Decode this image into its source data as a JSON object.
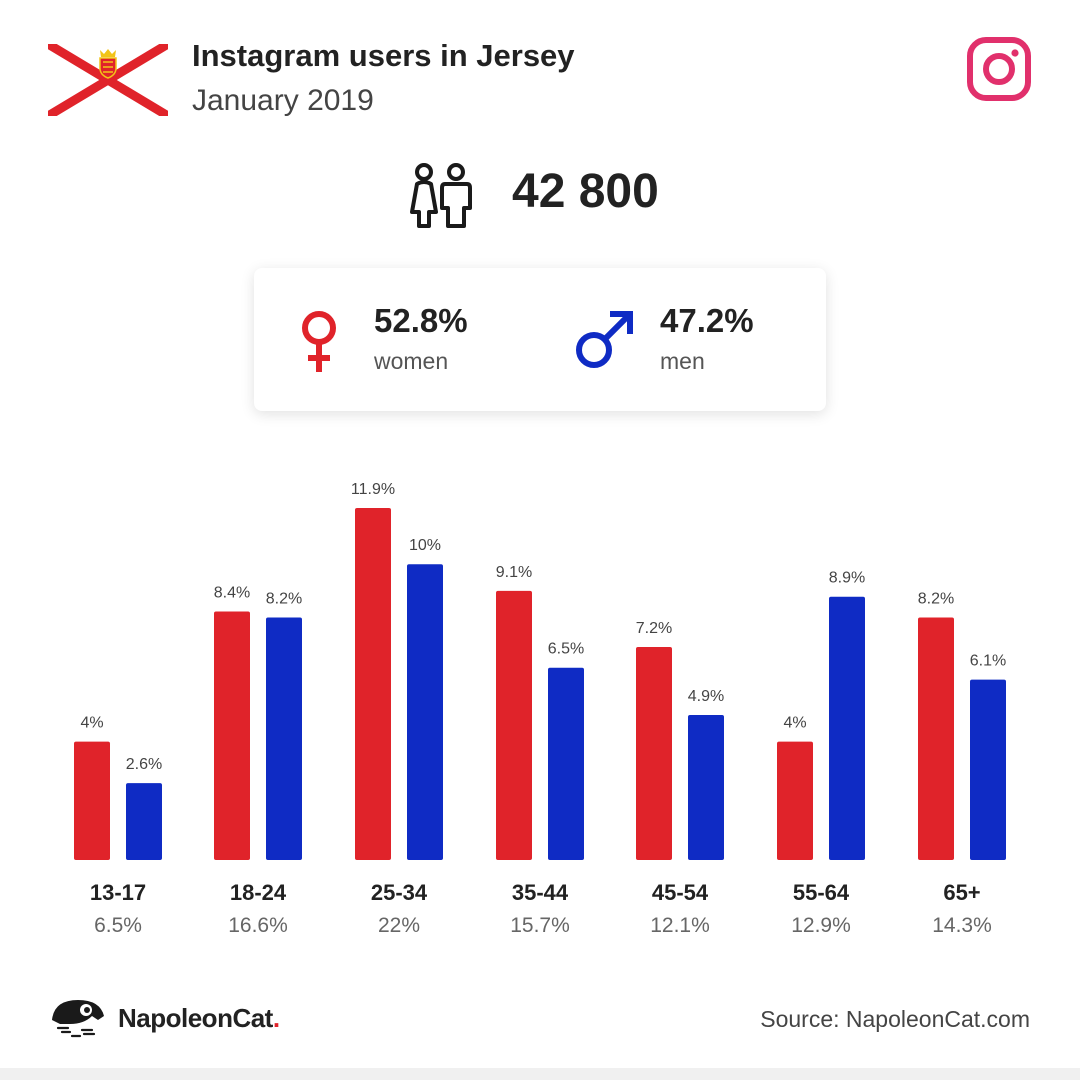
{
  "header": {
    "title": "Instagram users in Jersey",
    "subtitle": "January 2019"
  },
  "icons": {
    "flag": "jersey-flag-icon",
    "platform": "instagram-icon",
    "users": "users-icon",
    "female": "female-symbol-icon",
    "male": "male-symbol-icon",
    "brand": "napoleoncat-logo-icon"
  },
  "total_users": "42 800",
  "gender": {
    "women_pct": "52.8%",
    "women_label": "women",
    "men_pct": "47.2%",
    "men_label": "men"
  },
  "colors": {
    "women": "#e0232a",
    "men": "#0f2bc4",
    "instagram": "#e1306c",
    "flag_red": "#e0232a"
  },
  "chart_data": {
    "type": "bar",
    "categories": [
      "13-17",
      "18-24",
      "25-34",
      "35-44",
      "45-54",
      "55-64",
      "65+"
    ],
    "category_totals": [
      "6.5%",
      "16.6%",
      "22%",
      "15.7%",
      "12.1%",
      "12.9%",
      "14.3%"
    ],
    "series": [
      {
        "name": "women",
        "values": [
          4,
          8.4,
          11.9,
          9.1,
          7.2,
          4,
          8.2
        ],
        "labels": [
          "4%",
          "8.4%",
          "11.9%",
          "9.1%",
          "7.2%",
          "4%",
          "8.2%"
        ]
      },
      {
        "name": "men",
        "values": [
          2.6,
          8.2,
          10,
          6.5,
          4.9,
          8.9,
          6.1
        ],
        "labels": [
          "2.6%",
          "8.2%",
          "10%",
          "6.5%",
          "4.9%",
          "8.9%",
          "6.1%"
        ]
      }
    ],
    "ylim": [
      0,
      11.9
    ],
    "grid": false
  },
  "footer": {
    "brand_name": "NapoleonCat",
    "brand_dot": ".",
    "source": "Source: NapoleonCat.com"
  }
}
